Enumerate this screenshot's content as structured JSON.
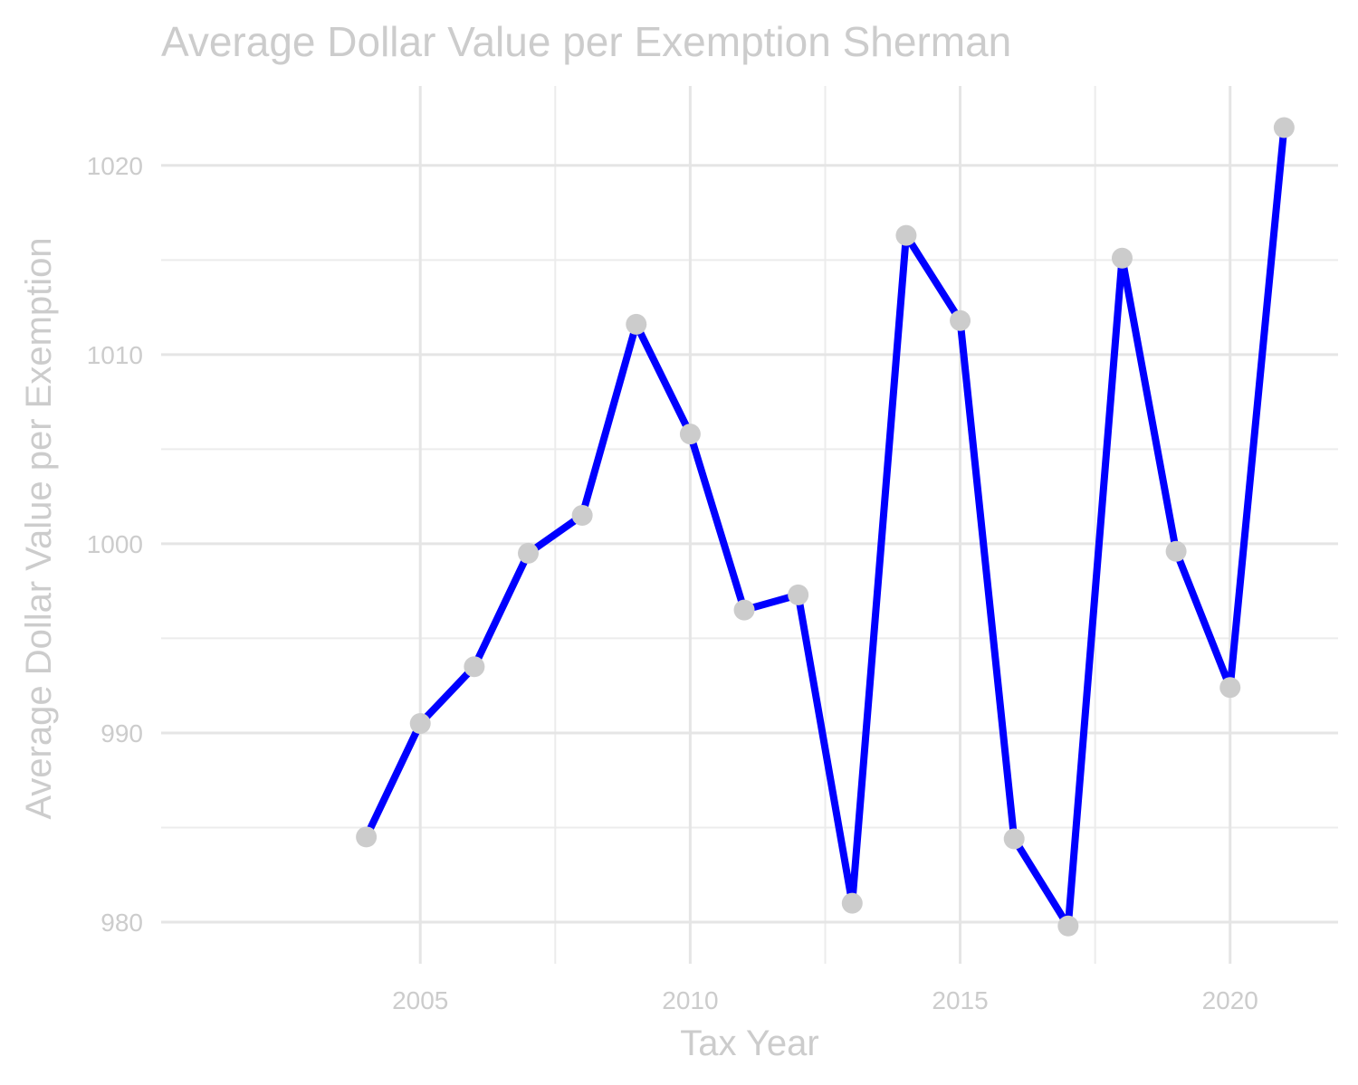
{
  "chart_data": {
    "type": "line",
    "title": "Average Dollar Value per Exemption Sherman",
    "xlabel": "Tax Year",
    "ylabel": "Average Dollar Value per Exemption",
    "xlim": [
      2000.2,
      2022.0
    ],
    "ylim": [
      977.8,
      1024.2
    ],
    "x_ticks": [
      2005,
      2010,
      2015,
      2020
    ],
    "x_minor_ticks": [
      2007.5,
      2012.5,
      2017.5
    ],
    "y_ticks": [
      980,
      990,
      1000,
      1010,
      1020
    ],
    "y_minor_ticks": [
      985,
      995,
      1005,
      1015
    ],
    "grid": true,
    "legend": "none",
    "line_color": "#0000ff",
    "point_color": "#cccccc",
    "series": [
      {
        "x": [
          2004,
          2005,
          2006,
          2007,
          2008,
          2009,
          2010,
          2011,
          2012,
          2013,
          2014,
          2015,
          2016,
          2017,
          2018,
          2019,
          2020,
          2021
        ],
        "values": [
          984.5,
          990.5,
          993.5,
          999.5,
          1001.5,
          1011.6,
          1005.8,
          996.5,
          997.3,
          981.0,
          1016.3,
          1011.8,
          984.4,
          979.8,
          1015.1,
          999.6,
          992.4,
          1022.0
        ]
      }
    ]
  }
}
